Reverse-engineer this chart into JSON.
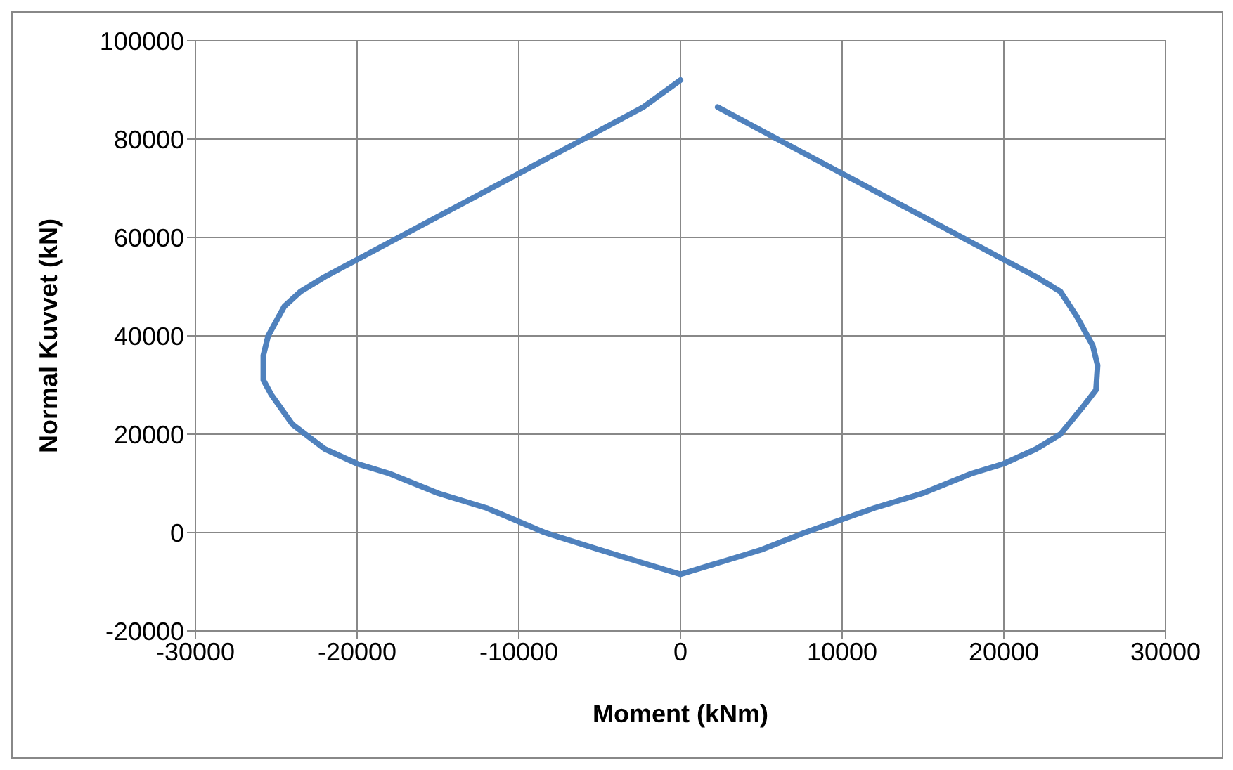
{
  "chart_data": {
    "type": "line",
    "xlabel": "Moment (kNm)",
    "ylabel": "Normal Kuvvet (kN)",
    "series": [
      {
        "color": "#4f81bd",
        "x": [
          0,
          -2300,
          -6000,
          -10000,
          -14000,
          -18000,
          -20000,
          -22000,
          -23500,
          -24500,
          -25500,
          -25800,
          -25800,
          -25300,
          -24000,
          -22000,
          -20000,
          -18000,
          -15000,
          -12000,
          -8400,
          -5000,
          -2500,
          0,
          2500,
          5000,
          7700,
          12000,
          15000,
          18000,
          20000,
          22000,
          23500,
          25000,
          25700,
          25800,
          25500,
          24500,
          23500,
          22000,
          20000,
          18000,
          14000,
          10000,
          6000,
          2300
        ],
        "values": [
          92000,
          86500,
          80000,
          73000,
          66000,
          59000,
          55500,
          52000,
          49000,
          46000,
          40000,
          36000,
          31000,
          28000,
          22000,
          17000,
          14000,
          12000,
          8000,
          5000,
          0,
          -3500,
          -6000,
          -8500,
          -6000,
          -3500,
          0,
          5000,
          8000,
          12000,
          14000,
          17000,
          20000,
          26000,
          29000,
          34000,
          38000,
          44000,
          49000,
          52000,
          55500,
          59000,
          66000,
          73000,
          80000,
          86500
        ]
      }
    ],
    "xlim": [
      -30000,
      30000
    ],
    "xticks": [
      -30000,
      -20000,
      -10000,
      0,
      10000,
      20000,
      30000
    ],
    "ylim": [
      -20000,
      100000
    ],
    "yticks": [
      -20000,
      0,
      20000,
      40000,
      60000,
      80000,
      100000
    ],
    "grid": true,
    "legend": false,
    "marker": "none",
    "line_style": "solid"
  }
}
